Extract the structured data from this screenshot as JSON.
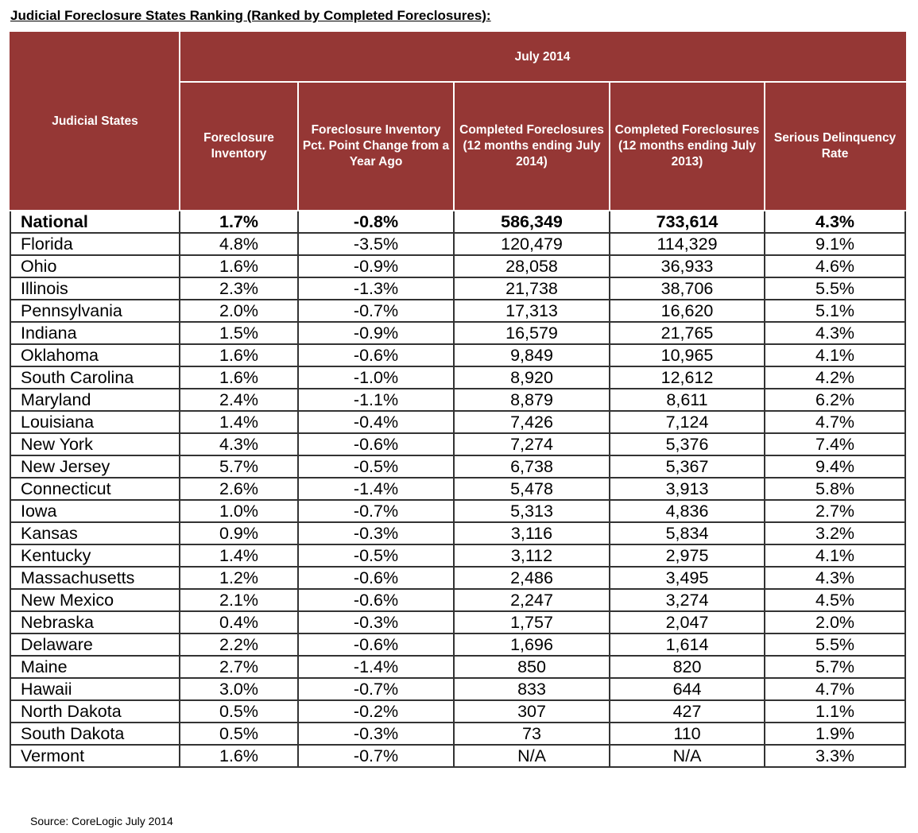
{
  "title": "Judicial Foreclosure States Ranking (Ranked by Completed Foreclosures):",
  "source": "Source: CoreLogic July 2014",
  "colors": {
    "header_bg": "#953735",
    "header_text": "#ffffff"
  },
  "chart_data": {
    "type": "table",
    "title": "Judicial Foreclosure States Ranking (Ranked by Completed Foreclosures):",
    "group_header": "July 2014",
    "columns": [
      "Judicial States",
      "Foreclosure Inventory",
      "Foreclosure Inventory Pct. Point Change from a Year Ago",
      "Completed Foreclosures (12 months ending July 2014)",
      "Completed Foreclosures (12 months ending July 2013)",
      "Serious Delinquency Rate"
    ],
    "rows": [
      [
        "National",
        "1.7%",
        "-0.8%",
        "586,349",
        "733,614",
        "4.3%"
      ],
      [
        "Florida",
        "4.8%",
        "-3.5%",
        "120,479",
        "114,329",
        "9.1%"
      ],
      [
        "Ohio",
        "1.6%",
        "-0.9%",
        "28,058",
        "36,933",
        "4.6%"
      ],
      [
        "Illinois",
        "2.3%",
        "-1.3%",
        "21,738",
        "38,706",
        "5.5%"
      ],
      [
        "Pennsylvania",
        "2.0%",
        "-0.7%",
        "17,313",
        "16,620",
        "5.1%"
      ],
      [
        "Indiana",
        "1.5%",
        "-0.9%",
        "16,579",
        "21,765",
        "4.3%"
      ],
      [
        "Oklahoma",
        "1.6%",
        "-0.6%",
        "9,849",
        "10,965",
        "4.1%"
      ],
      [
        "South Carolina",
        "1.6%",
        "-1.0%",
        "8,920",
        "12,612",
        "4.2%"
      ],
      [
        "Maryland",
        "2.4%",
        "-1.1%",
        "8,879",
        "8,611",
        "6.2%"
      ],
      [
        "Louisiana",
        "1.4%",
        "-0.4%",
        "7,426",
        "7,124",
        "4.7%"
      ],
      [
        "New York",
        "4.3%",
        "-0.6%",
        "7,274",
        "5,376",
        "7.4%"
      ],
      [
        "New Jersey",
        "5.7%",
        "-0.5%",
        "6,738",
        "5,367",
        "9.4%"
      ],
      [
        "Connecticut",
        "2.6%",
        "-1.4%",
        "5,478",
        "3,913",
        "5.8%"
      ],
      [
        "Iowa",
        "1.0%",
        "-0.7%",
        "5,313",
        "4,836",
        "2.7%"
      ],
      [
        "Kansas",
        "0.9%",
        "-0.3%",
        "3,116",
        "5,834",
        "3.2%"
      ],
      [
        "Kentucky",
        "1.4%",
        "-0.5%",
        "3,112",
        "2,975",
        "4.1%"
      ],
      [
        "Massachusetts",
        "1.2%",
        "-0.6%",
        "2,486",
        "3,495",
        "4.3%"
      ],
      [
        "New Mexico",
        "2.1%",
        "-0.6%",
        "2,247",
        "3,274",
        "4.5%"
      ],
      [
        "Nebraska",
        "0.4%",
        "-0.3%",
        "1,757",
        "2,047",
        "2.0%"
      ],
      [
        "Delaware",
        "2.2%",
        "-0.6%",
        "1,696",
        "1,614",
        "5.5%"
      ],
      [
        "Maine",
        "2.7%",
        "-1.4%",
        "850",
        "820",
        "5.7%"
      ],
      [
        "Hawaii",
        "3.0%",
        "-0.7%",
        "833",
        "644",
        "4.7%"
      ],
      [
        "North Dakota",
        "0.5%",
        "-0.2%",
        "307",
        "427",
        "1.1%"
      ],
      [
        "South Dakota",
        "0.5%",
        "-0.3%",
        "73",
        "110",
        "1.9%"
      ],
      [
        "Vermont",
        "1.6%",
        "-0.7%",
        "N/A",
        "N/A",
        "3.3%"
      ]
    ]
  }
}
